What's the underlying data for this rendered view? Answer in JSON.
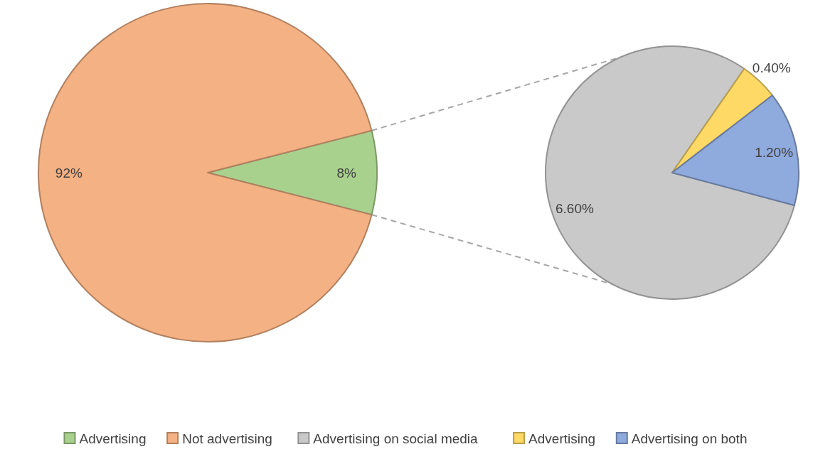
{
  "chart_data": [
    {
      "type": "pie",
      "categories": [
        "Advertising",
        "Not advertising"
      ],
      "values": [
        8,
        92
      ],
      "colors": [
        "#a9d18e",
        "#f4b183"
      ],
      "value_labels": [
        "8%",
        "92%"
      ],
      "legend": "bottom"
    },
    {
      "type": "pie",
      "categories": [
        "Advertising on social media",
        "Advertising",
        "Advertising on both"
      ],
      "values": [
        6.6,
        0.4,
        1.2
      ],
      "colors": [
        "#c9c9c9",
        "#ffd966",
        "#8faadc"
      ],
      "value_labels": [
        "6.60%",
        "0.40%",
        "1.20%"
      ],
      "legend": "bottom"
    }
  ]
}
